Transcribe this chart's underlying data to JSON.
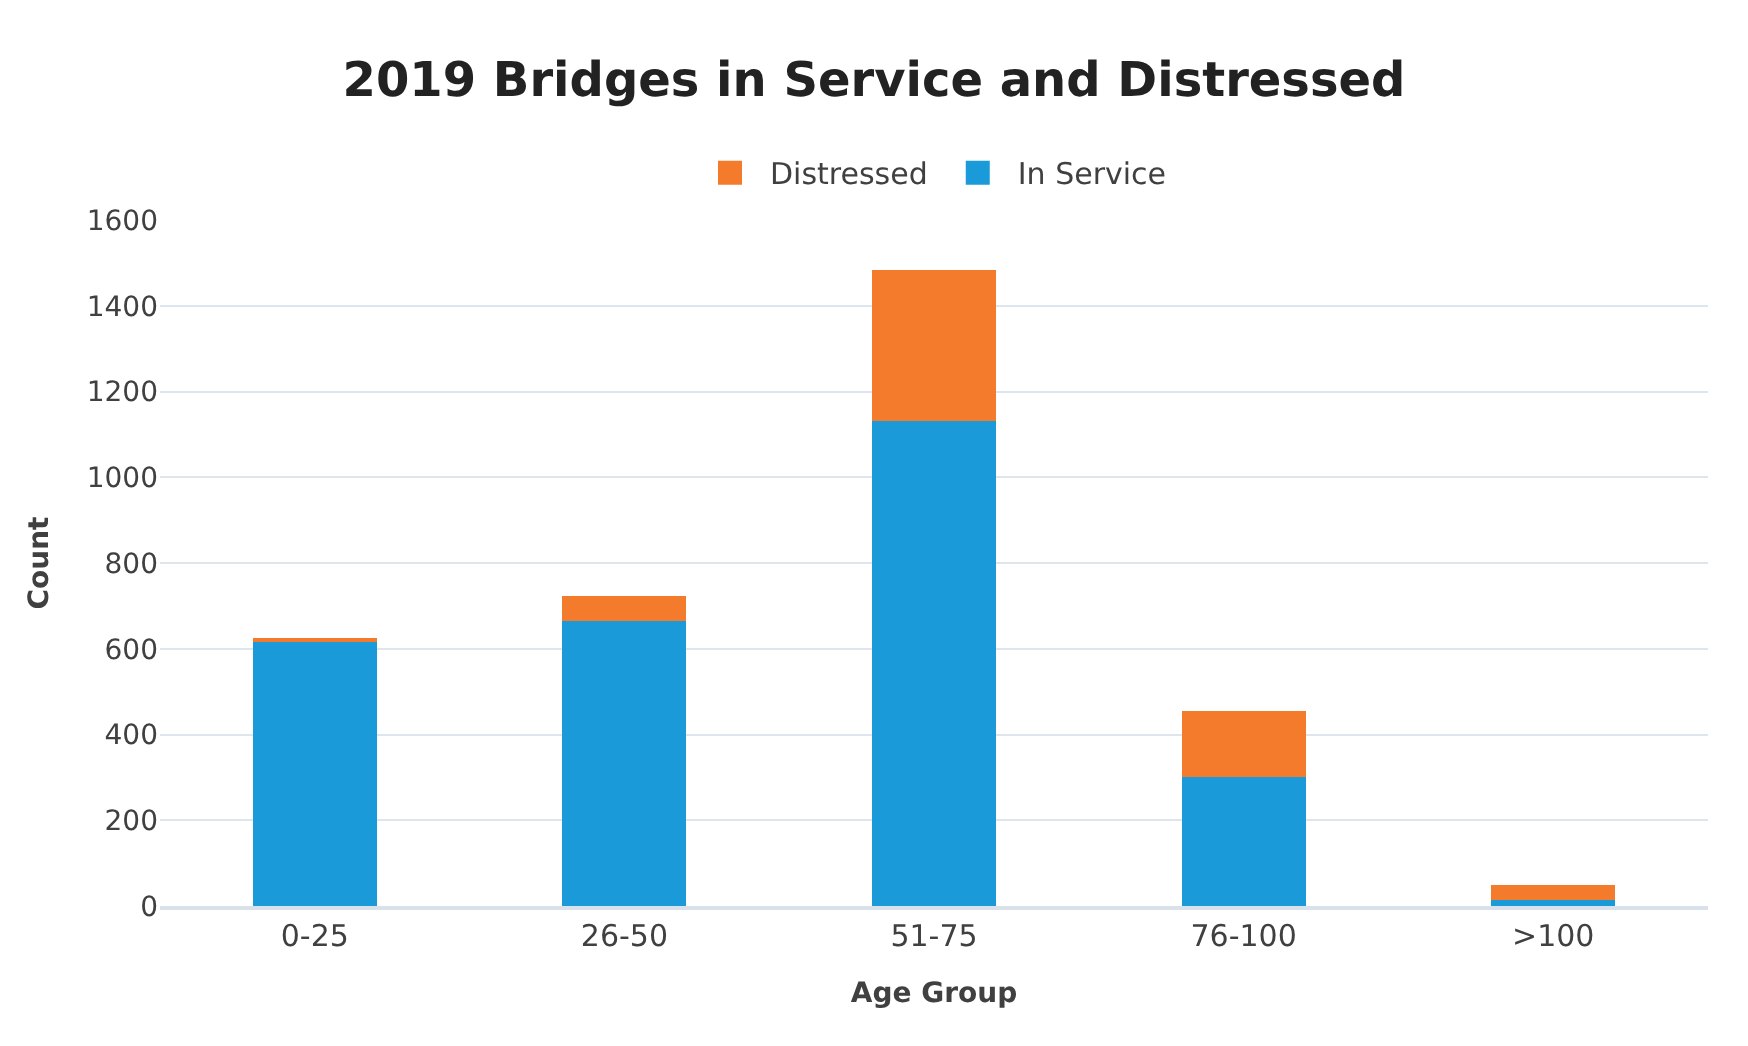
{
  "chart_data": {
    "type": "bar",
    "title": "2019 Bridges in Service and Distressed",
    "xlabel": "Age Group",
    "ylabel": "Count",
    "categories": [
      "0-25",
      "26-50",
      "51-75",
      "76-100",
      ">100"
    ],
    "series": [
      {
        "name": "In Service",
        "color": "#1a9ad9",
        "values": [
          615,
          664,
          1131,
          300,
          15
        ]
      },
      {
        "name": "Distressed",
        "color": "#f47a2c",
        "values": [
          10,
          60,
          352,
          154,
          33
        ]
      }
    ],
    "stacked": true,
    "ylim": [
      0,
      1600
    ],
    "yticks": [
      0,
      200,
      400,
      600,
      800,
      1000,
      1200,
      1400,
      1600
    ],
    "grid": "y",
    "legend": "top"
  }
}
